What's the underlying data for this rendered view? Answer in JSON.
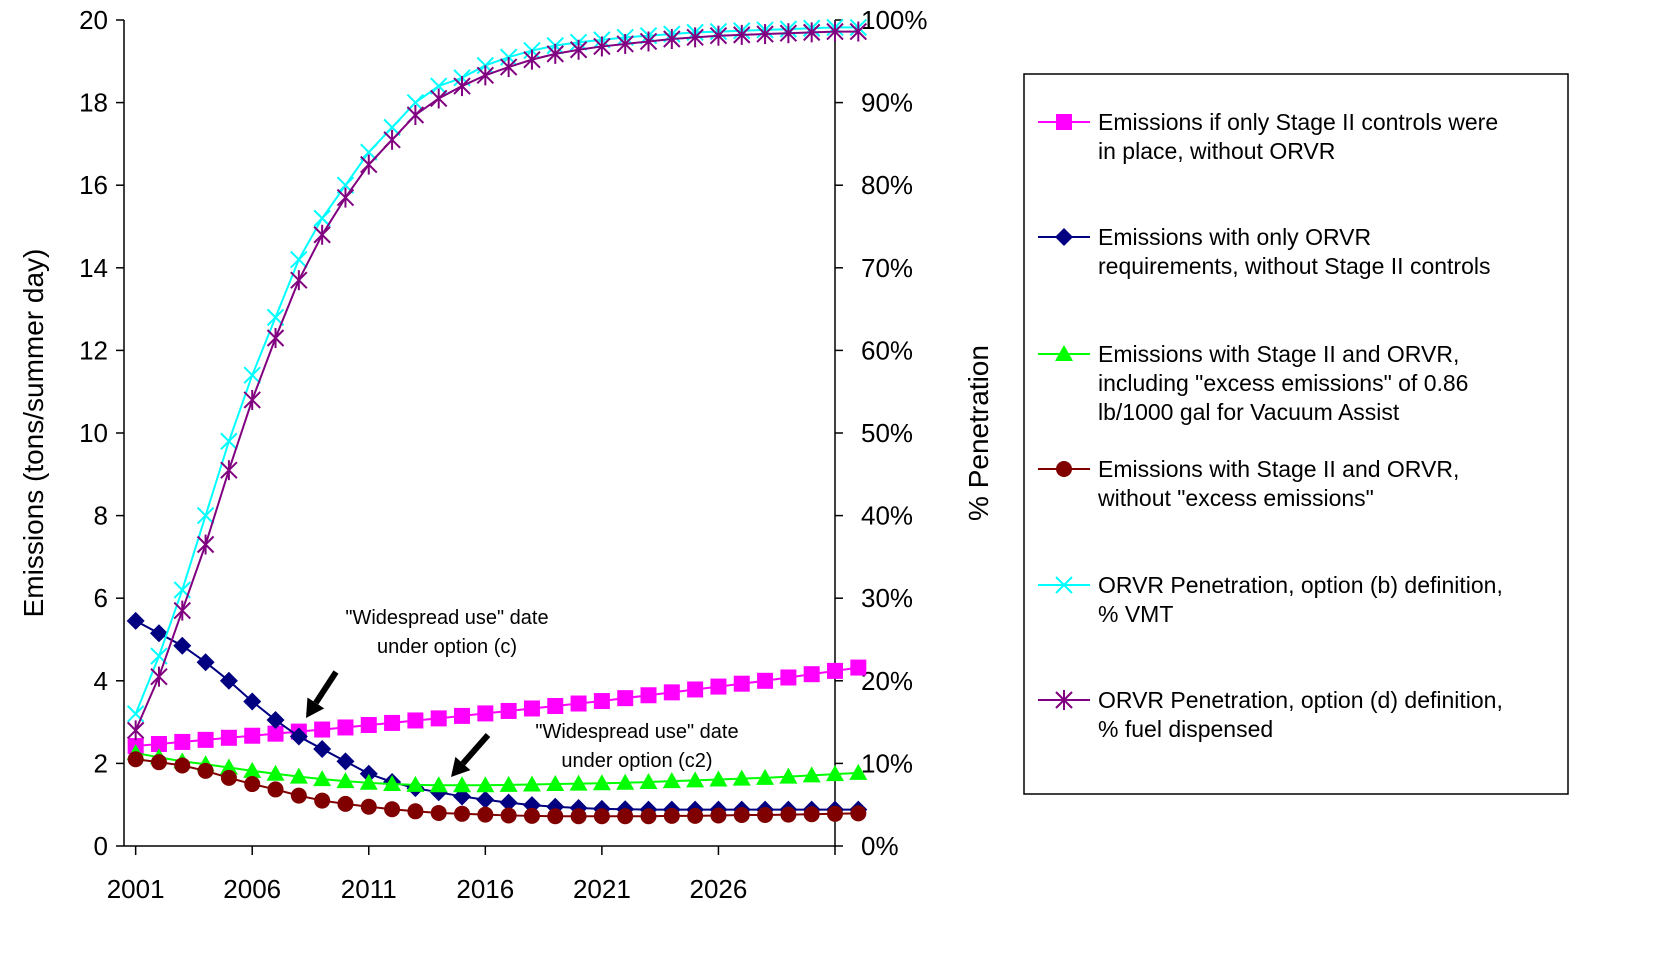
{
  "chart_data": {
    "type": "line",
    "x_start": 2001,
    "x_end": 2031,
    "xticks": [
      2001,
      2006,
      2011,
      2016,
      2021,
      2026
    ],
    "ylabel": "Emissions (tons/summer day)",
    "ylim": [
      0,
      20
    ],
    "yticks": [
      0,
      2,
      4,
      6,
      8,
      10,
      12,
      14,
      16,
      18,
      20
    ],
    "y2label": "% Penetration",
    "y2lim": [
      0,
      100
    ],
    "y2ticks": [
      "0%",
      "10%",
      "20%",
      "30%",
      "40%",
      "50%",
      "60%",
      "70%",
      "80%",
      "90%",
      "100%"
    ],
    "grid": false,
    "legend_position": "right",
    "series": [
      {
        "name": "Emissions if only Stage II controls were in place, without ORVR",
        "axis": "left",
        "color": "#FF00FF",
        "marker": "square",
        "values": [
          2.42,
          2.47,
          2.52,
          2.57,
          2.62,
          2.67,
          2.72,
          2.77,
          2.82,
          2.87,
          2.93,
          2.98,
          3.04,
          3.09,
          3.15,
          3.21,
          3.27,
          3.33,
          3.39,
          3.45,
          3.51,
          3.58,
          3.65,
          3.72,
          3.79,
          3.86,
          3.93,
          4.0,
          4.08,
          4.16,
          4.24,
          4.32
        ]
      },
      {
        "name": "Emissions with only ORVR requirements, without Stage II controls",
        "axis": "left",
        "color": "#000080",
        "marker": "diamond",
        "values": [
          5.45,
          5.15,
          4.85,
          4.45,
          4.0,
          3.5,
          3.05,
          2.65,
          2.35,
          2.05,
          1.75,
          1.55,
          1.4,
          1.3,
          1.2,
          1.12,
          1.05,
          0.99,
          0.95,
          0.92,
          0.9,
          0.89,
          0.88,
          0.88,
          0.88,
          0.88,
          0.88,
          0.88,
          0.88,
          0.88,
          0.88,
          0.88
        ]
      },
      {
        "name": "Emissions with Stage II and ORVR, including \"excess emissions\" of 0.86 lb/1000 gal for Vacuum Assist",
        "axis": "left",
        "color": "#00FF00",
        "marker": "triangle",
        "values": [
          2.25,
          2.15,
          2.05,
          1.98,
          1.9,
          1.82,
          1.75,
          1.68,
          1.62,
          1.57,
          1.53,
          1.5,
          1.48,
          1.47,
          1.47,
          1.47,
          1.48,
          1.49,
          1.5,
          1.51,
          1.52,
          1.53,
          1.55,
          1.57,
          1.59,
          1.61,
          1.63,
          1.65,
          1.68,
          1.71,
          1.74,
          1.77
        ]
      },
      {
        "name": "Emissions with Stage II and ORVR, without \"excess emissions\"",
        "axis": "left",
        "color": "#800000",
        "marker": "circle",
        "values": [
          2.1,
          2.03,
          1.95,
          1.82,
          1.65,
          1.5,
          1.37,
          1.22,
          1.1,
          1.02,
          0.95,
          0.89,
          0.84,
          0.8,
          0.78,
          0.76,
          0.74,
          0.73,
          0.72,
          0.72,
          0.72,
          0.72,
          0.72,
          0.73,
          0.73,
          0.74,
          0.75,
          0.75,
          0.76,
          0.77,
          0.78,
          0.79
        ]
      },
      {
        "name": "ORVR Penetration, option (b) definition, % VMT",
        "axis": "right",
        "color": "#00FFFF",
        "marker": "x",
        "values": [
          16,
          23,
          31,
          40,
          49,
          57,
          64,
          71,
          76,
          80,
          84,
          87,
          90,
          92,
          93,
          94.5,
          95.5,
          96.3,
          96.9,
          97.3,
          97.6,
          97.9,
          98.1,
          98.3,
          98.5,
          98.6,
          98.7,
          98.8,
          98.9,
          99,
          99.1,
          99.1
        ]
      },
      {
        "name": "ORVR Penetration, option (d) definition, % fuel dispensed",
        "axis": "right",
        "color": "#800080",
        "marker": "star",
        "values": [
          14,
          20.5,
          28.5,
          36.5,
          45.5,
          54,
          61.5,
          68.5,
          74,
          78.5,
          82.5,
          85.5,
          88.5,
          90.5,
          92,
          93.3,
          94.3,
          95.2,
          95.9,
          96.4,
          96.8,
          97.1,
          97.4,
          97.7,
          97.9,
          98.1,
          98.2,
          98.3,
          98.4,
          98.5,
          98.6,
          98.6
        ]
      }
    ],
    "annotations": [
      {
        "lines": [
          "\"Widespread use\" date",
          "under option (c)"
        ]
      },
      {
        "lines": [
          "\"Widespread use\" date",
          "under option (c2)"
        ]
      }
    ]
  }
}
